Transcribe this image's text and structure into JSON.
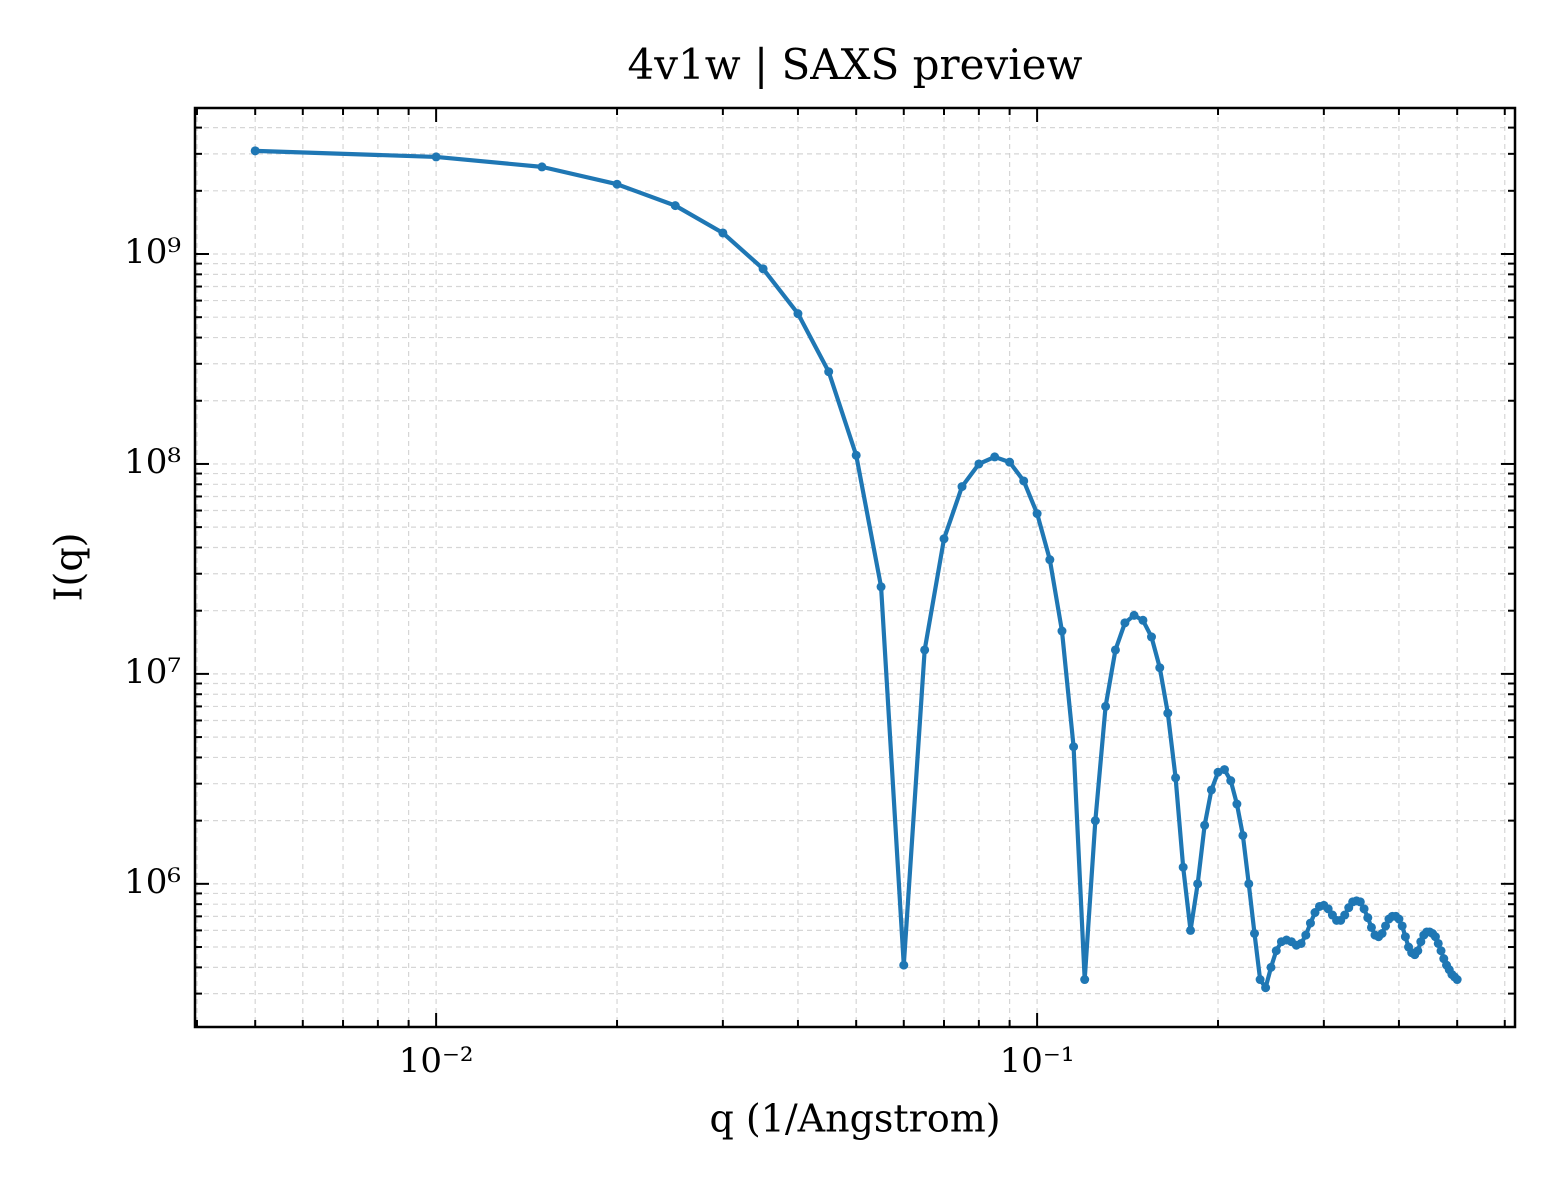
{
  "chart_data": {
    "type": "line",
    "title": "4v1w | SAXS preview",
    "xlabel": "q (1/Angstrom)",
    "ylabel": "I(q)",
    "log_x": true,
    "log_y": true,
    "grid": true,
    "color": "#1f77b4",
    "x": [
      0.005,
      0.01,
      0.015,
      0.02,
      0.025,
      0.03,
      0.035,
      0.04,
      0.045,
      0.05,
      0.055,
      0.06,
      0.065,
      0.07,
      0.075,
      0.08,
      0.085,
      0.09,
      0.095,
      0.1,
      0.105,
      0.11,
      0.115,
      0.12,
      0.125,
      0.13,
      0.135,
      0.14,
      0.145,
      0.15,
      0.155,
      0.16,
      0.165,
      0.17,
      0.175,
      0.18,
      0.185,
      0.19,
      0.195,
      0.2,
      0.205,
      0.21,
      0.215,
      0.22,
      0.225,
      0.23,
      0.235,
      0.24,
      0.245,
      0.25,
      0.255,
      0.26,
      0.265,
      0.27,
      0.275,
      0.28,
      0.285,
      0.29,
      0.295,
      0.3,
      0.305,
      0.31,
      0.315,
      0.32,
      0.325,
      0.33,
      0.335,
      0.34,
      0.345,
      0.35,
      0.355,
      0.36,
      0.365,
      0.37,
      0.375,
      0.38,
      0.385,
      0.39,
      0.395,
      0.4,
      0.405,
      0.41,
      0.415,
      0.42,
      0.425,
      0.43,
      0.435,
      0.44,
      0.445,
      0.45,
      0.455,
      0.46,
      0.465,
      0.47,
      0.475,
      0.48,
      0.485,
      0.49,
      0.495,
      0.5
    ],
    "values": [
      3100000000.0,
      2900000000.0,
      2600000000.0,
      2150000000.0,
      1700000000.0,
      1260000000.0,
      850000000.0,
      520000000.0,
      275000000.0,
      110000000.0,
      26000000.0,
      410000.0,
      13000000.0,
      44000000.0,
      78000000.0,
      100000000.0,
      108000000.0,
      102000000.0,
      83000000.0,
      58000000.0,
      35000000.0,
      16000000.0,
      4500000.0,
      350000.0,
      2000000.0,
      7000000.0,
      13000000.0,
      17500000.0,
      19000000.0,
      18000000.0,
      15000000.0,
      10700000.0,
      6500000.0,
      3200000.0,
      1200000.0,
      600000.0,
      1000000.0,
      1900000.0,
      2800000.0,
      3400000.0,
      3500000.0,
      3100000.0,
      2400000.0,
      1700000.0,
      1000000.0,
      580000.0,
      350000.0,
      320000.0,
      400000.0,
      480000.0,
      530000.0,
      540000.0,
      530000.0,
      510000.0,
      520000.0,
      570000.0,
      650000.0,
      730000.0,
      780000.0,
      790000.0,
      760000.0,
      710000.0,
      670000.0,
      670000.0,
      710000.0,
      770000.0,
      820000.0,
      830000.0,
      820000.0,
      760000.0,
      690000.0,
      620000.0,
      570000.0,
      560000.0,
      580000.0,
      630000.0,
      680000.0,
      700000.0,
      700000.0,
      680000.0,
      630000.0,
      560000.0,
      500000.0,
      470000.0,
      460000.0,
      480000.0,
      530000.0,
      570000.0,
      590000.0,
      590000.0,
      580000.0,
      560000.0,
      520000.0,
      480000.0,
      440000.0,
      410000.0,
      390000.0,
      370000.0,
      360000.0,
      350000.0
    ],
    "xlim": [
      0.00397,
      0.624
    ],
    "ylim": [
      208000.0,
      4960000000.0
    ],
    "xticks": [
      {
        "value": 0.01,
        "label": "10⁻²"
      },
      {
        "value": 0.1,
        "label": "10⁻¹"
      }
    ],
    "yticks": [
      {
        "value": 1000000,
        "label": "10⁶"
      },
      {
        "value": 10000000,
        "label": "10⁷"
      },
      {
        "value": 100000000,
        "label": "10⁸"
      },
      {
        "value": 1000000000,
        "label": "10⁹"
      }
    ],
    "xminorticks": [
      0.004,
      0.005,
      0.006,
      0.007,
      0.008,
      0.009,
      0.02,
      0.03,
      0.04,
      0.05,
      0.06,
      0.07,
      0.08,
      0.09,
      0.2,
      0.3,
      0.4,
      0.5,
      0.6
    ],
    "yminorticks": [
      300000.0,
      400000.0,
      500000.0,
      600000.0,
      700000.0,
      800000.0,
      900000.0,
      2000000.0,
      3000000.0,
      4000000.0,
      5000000.0,
      6000000.0,
      7000000.0,
      8000000.0,
      9000000.0,
      20000000.0,
      30000000.0,
      40000000.0,
      50000000.0,
      60000000.0,
      70000000.0,
      80000000.0,
      90000000.0,
      200000000.0,
      300000000.0,
      400000000.0,
      500000000.0,
      600000000.0,
      700000000.0,
      800000000.0,
      900000000.0,
      2000000000.0,
      3000000000.0,
      4000000000.0
    ]
  }
}
